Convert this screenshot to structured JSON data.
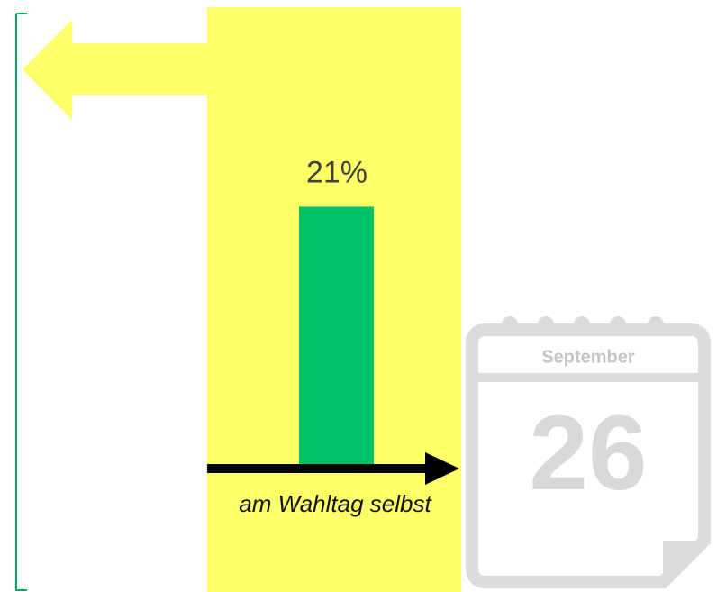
{
  "chart_data": {
    "type": "bar",
    "categories": [
      "am Wahltag selbst"
    ],
    "values": [
      21
    ],
    "value_labels": [
      "21%"
    ],
    "color": "#00c06a",
    "ylim": [
      0,
      37
    ],
    "annotations": {
      "month": "September",
      "day": "26"
    }
  }
}
